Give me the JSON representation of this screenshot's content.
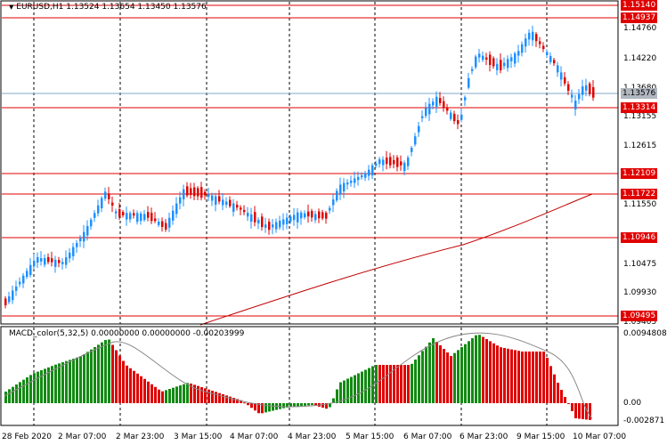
{
  "header": {
    "symbol": "EURUSD,H1",
    "ohlc": "1.13524 1.13654 1.13450 1.13576"
  },
  "macd": {
    "label": "MACD_color(5,32,5) 0.00000000 0.00000000 -0.00203999",
    "scale_top": "0.0094808",
    "scale_zero": "0.00",
    "scale_bottom": "-0.002871"
  },
  "price_axis": {
    "ticks": [
      "1.14760",
      "1.14220",
      "1.13680",
      "1.13155",
      "1.12615",
      "1.11550",
      "1.10475",
      "1.09930",
      "1.09405"
    ],
    "levels": [
      "1.15140",
      "1.14937",
      "1.13314",
      "1.12109",
      "1.11722",
      "1.10946",
      "1.09495"
    ],
    "current_price": "1.13576",
    "colors": {
      "level_line": "#e00000",
      "bull": "#1e90ff",
      "bear": "#e00000",
      "ma": "#c00000",
      "macd_up": "#138a13",
      "macd_down": "#e00000"
    }
  },
  "time_axis": [
    "28 Feb 2020",
    "2 Mar 07:00",
    "2 Mar 23:00",
    "3 Mar 15:00",
    "4 Mar 07:00",
    "4 Mar 23:00",
    "5 Mar 15:00",
    "6 Mar 07:00",
    "6 Mar 23:00",
    "9 Mar 15:00",
    "10 Mar 07:00"
  ]
}
